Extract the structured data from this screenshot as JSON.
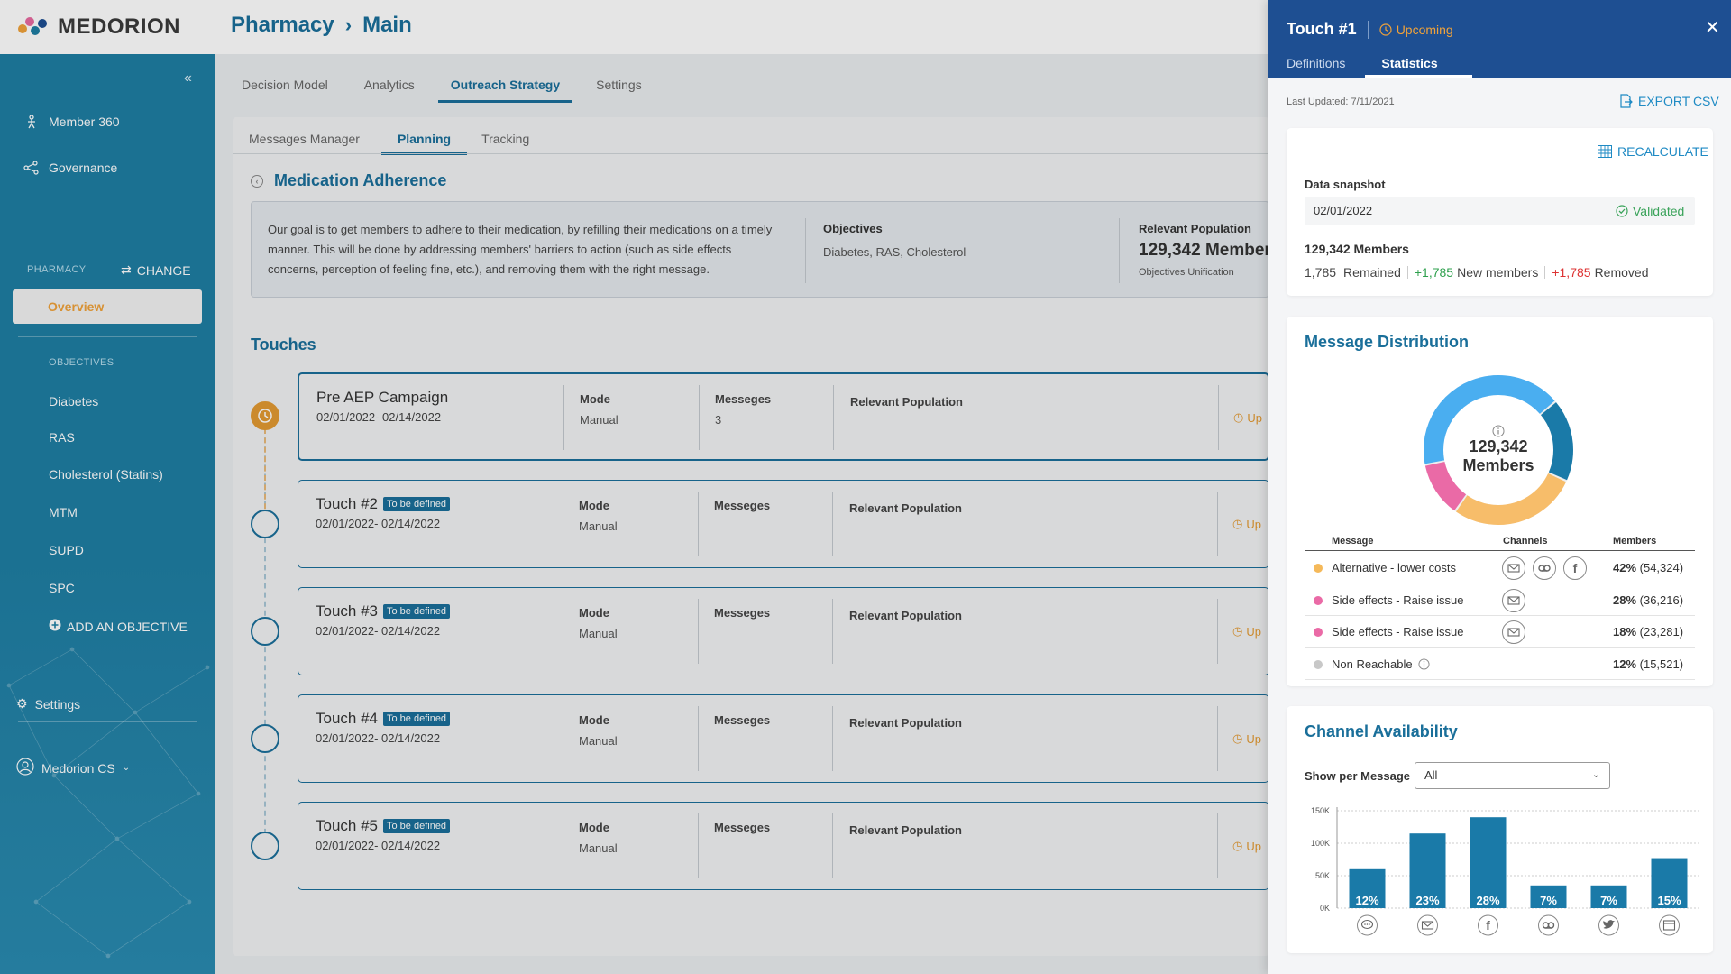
{
  "app": {
    "logo_text": "MEDORION",
    "breadcrumb": [
      "Pharmacy",
      "Main"
    ]
  },
  "colors": {
    "brand_blue": "#1a6f9a",
    "sidebar": "#1f7ea3",
    "panel_header": "#1e4f92",
    "accent_orange": "#e39a33",
    "green": "#2ea04d",
    "red": "#dd3333"
  },
  "sidebar": {
    "nav": [
      {
        "label": "Member 360",
        "icon": "person-icon"
      },
      {
        "label": "Governance",
        "icon": "network-icon"
      }
    ],
    "section_label": "PHARMACY",
    "change_label": "CHANGE",
    "overview_label": "Overview",
    "objectives_label": "OBJECTIVES",
    "objectives": [
      "Diabetes",
      "RAS",
      "Cholesterol (Statins)",
      "MTM",
      "SUPD",
      "SPC"
    ],
    "add_objective": "ADD AN OBJECTIVE",
    "settings_label": "Settings",
    "user_label": "Medorion CS"
  },
  "main": {
    "tabs": [
      "Decision Model",
      "Analytics",
      "Outreach Strategy",
      "Settings"
    ],
    "active_tab": "Outreach Strategy",
    "sub_tabs": [
      "Messages Manager",
      "Planning",
      "Tracking"
    ],
    "active_sub_tab": "Planning",
    "strategy_title": "Medication Adherence",
    "description": "Our goal is to get members to adhere to their medication, by refilling their medications on a timely manner. This will be done by addressing members' barriers to action (such as side effects concerns, perception of feeling fine, etc.), and removing them with the right message.",
    "objectives_header": "Objectives",
    "objectives_value": "Diabetes, RAS, Cholesterol",
    "population_header": "Relevant Population",
    "population_value": "129,342 Members",
    "population_sub": "Objectives Unification",
    "touches_title": "Touches",
    "touches": [
      {
        "name": "Pre AEP Campaign",
        "badge": "",
        "dates": "02/01/2022- 02/14/2022",
        "mode_label": "Mode",
        "mode": "Manual",
        "messages_label": "Messeges",
        "messages": "3",
        "population_label": "Relevant Population",
        "status": "Up"
      },
      {
        "name": "Touch #2",
        "badge": "To be defined",
        "dates": "02/01/2022- 02/14/2022",
        "mode_label": "Mode",
        "mode": "Manual",
        "messages_label": "Messeges",
        "messages": "",
        "population_label": "Relevant Population",
        "status": "Up"
      },
      {
        "name": "Touch #3",
        "badge": "To be defined",
        "dates": "02/01/2022- 02/14/2022",
        "mode_label": "Mode",
        "mode": "Manual",
        "messages_label": "Messeges",
        "messages": "",
        "population_label": "Relevant Population",
        "status": "Up"
      },
      {
        "name": "Touch #4",
        "badge": "To be defined",
        "dates": "02/01/2022- 02/14/2022",
        "mode_label": "Mode",
        "mode": "Manual",
        "messages_label": "Messeges",
        "messages": "",
        "population_label": "Relevant Population",
        "status": "Up"
      },
      {
        "name": "Touch #5",
        "badge": "To be defined",
        "dates": "02/01/2022- 02/14/2022",
        "mode_label": "Mode",
        "mode": "Manual",
        "messages_label": "Messeges",
        "messages": "",
        "population_label": "Relevant Population",
        "status": "Up"
      }
    ]
  },
  "panel": {
    "title": "Touch #1",
    "status": "Upcoming",
    "tabs": [
      "Definitions",
      "Statistics"
    ],
    "active_tab": "Statistics",
    "last_updated": "Last Updated: 7/11/2021",
    "export_label": "EXPORT CSV",
    "recalculate_label": "RECALCULATE",
    "snapshot_label": "Data snapshot",
    "snapshot_date": "02/01/2022",
    "validated_label": "Validated",
    "members_total": "129,342 Members",
    "remained": "1,785",
    "remained_label": "Remained",
    "new_members": "+1,785",
    "new_members_label": "New members",
    "removed": "+1,785",
    "removed_label": "Removed",
    "distribution": {
      "title": "Message Distribution",
      "center_value": "129,342",
      "center_label": "Members",
      "col_message": "Message",
      "col_channels": "Channels",
      "col_members": "Members",
      "rows": [
        {
          "message": "Alternative - lower costs",
          "color": "#f5b95a",
          "channels": [
            "email-icon",
            "voice-icon",
            "facebook-icon"
          ],
          "pct": "42%",
          "count": "(54,324)",
          "share": 0.42,
          "info": false
        },
        {
          "message": "Side effects - Raise issue",
          "color": "#ea6aa6",
          "channels": [
            "email-icon"
          ],
          "pct": "28%",
          "count": "(36,216)",
          "share": 0.28,
          "info": false
        },
        {
          "message": "Side effects - Raise issue",
          "color": "#ea6aa6",
          "channels": [
            "email-icon"
          ],
          "pct": "18%",
          "count": "(23,281)",
          "share": 0.18,
          "info": false
        },
        {
          "message": "Non Reachable",
          "color": "#c8c8c8",
          "channels": [],
          "pct": "12%",
          "count": "(15,521)",
          "share": 0.12,
          "info": true
        }
      ]
    },
    "channel_availability": {
      "title": "Channel Availability",
      "show_label": "Show per Message",
      "select_value": "All"
    }
  },
  "chart_data": {
    "type": "bar",
    "title": "Channel Availability",
    "categories": [
      "sms-icon",
      "email-icon",
      "facebook-icon",
      "voice-icon",
      "twitter-icon",
      "web-icon"
    ],
    "values": [
      60000,
      115000,
      140000,
      35000,
      35000,
      77000
    ],
    "labels": [
      "12%",
      "23%",
      "28%",
      "7%",
      "7%",
      "15%"
    ],
    "yticks": [
      "150K",
      "100K",
      "50K",
      "0K"
    ],
    "ylim": [
      0,
      150000
    ],
    "grid": true,
    "color": "#1a7aa8"
  }
}
